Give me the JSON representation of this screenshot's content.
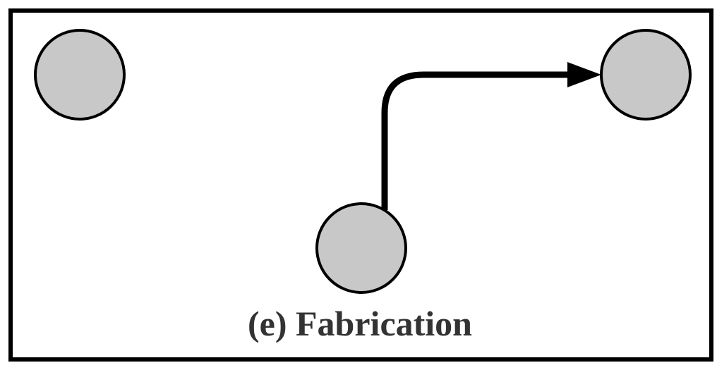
{
  "diagram": {
    "caption": "(e) Fabrication",
    "colors": {
      "node_fill": "#c8c8c8",
      "stroke": "#000000",
      "background": "#ffffff",
      "caption": "#333333"
    },
    "nodes": [
      {
        "id": "node-top-left"
      },
      {
        "id": "node-top-right"
      },
      {
        "id": "node-bottom-center"
      }
    ],
    "edges": [
      {
        "from": "node-bottom-center",
        "to": "node-top-right",
        "directed": true
      }
    ]
  }
}
